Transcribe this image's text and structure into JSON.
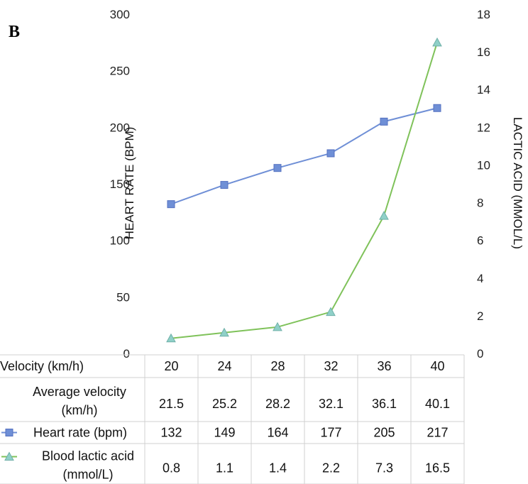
{
  "panel_label": "B",
  "chart_data": {
    "type": "line",
    "x": [
      20,
      24,
      28,
      32,
      36,
      40
    ],
    "series": [
      {
        "name": "Heart rate (bpm)",
        "axis": "left",
        "marker": "square",
        "color": "#6f8fd6",
        "values": [
          132,
          149,
          164,
          177,
          205,
          217
        ]
      },
      {
        "name": "Blood lactic acid (mmol/L)",
        "axis": "right",
        "marker": "triangle",
        "color": "#7fc25a",
        "values": [
          0.8,
          1.1,
          1.4,
          2.2,
          7.3,
          16.5
        ]
      }
    ],
    "ylabel": "HEART RATE (BPM)",
    "y2label": "LACTIC ACID (MMOL/L)",
    "ylim": [
      0,
      300
    ],
    "y2lim": [
      0,
      18
    ],
    "yticks": [
      "0",
      "50",
      "100",
      "150",
      "200",
      "250",
      "300"
    ],
    "y2ticks": [
      "0",
      "2",
      "4",
      "6",
      "8",
      "10",
      "12",
      "14",
      "16",
      "18"
    ],
    "grid": false,
    "table": {
      "rows": [
        {
          "label": [
            "Velocity (km/h)"
          ],
          "values": [
            "20",
            "24",
            "28",
            "32",
            "36",
            "40"
          ]
        },
        {
          "label": [
            "Average velocity",
            "(km/h)"
          ],
          "values": [
            "21.5",
            "25.2",
            "28.2",
            "32.1",
            "36.1",
            "40.1"
          ]
        },
        {
          "label": [
            "Heart rate (bpm)"
          ],
          "values": [
            "132",
            "149",
            "164",
            "177",
            "205",
            "217"
          ],
          "legend_series": 0
        },
        {
          "label": [
            "Blood lactic acid",
            "(mmol/L)"
          ],
          "values": [
            "0.8",
            "1.1",
            "1.4",
            "2.2",
            "7.3",
            "16.5"
          ],
          "legend_series": 1
        }
      ]
    }
  }
}
